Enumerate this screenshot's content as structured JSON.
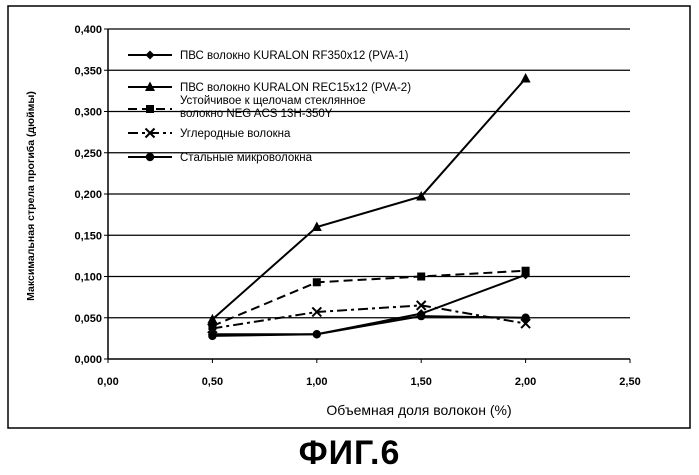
{
  "figure_label": "ФИГ.6",
  "chart_data": {
    "type": "line",
    "title": "",
    "xlabel": "Объемная доля волокон (%)",
    "ylabel": "Максимальная стрела прогиба (дюймы)",
    "xlim": [
      0,
      2.5
    ],
    "ylim": [
      0,
      0.4
    ],
    "x_ticks": [
      "0,00",
      "0,50",
      "1,00",
      "1,50",
      "2,00",
      "2,50"
    ],
    "y_ticks": [
      "0,000",
      "0,050",
      "0,100",
      "0,150",
      "0,200",
      "0,250",
      "0,300",
      "0,350",
      "0,400"
    ],
    "grid": "horizontal",
    "legend_position": "top-left",
    "series": [
      {
        "name": "ПВС волокно KURALON RF350x12 (PVA-1)",
        "line": "solid",
        "marker": "diamond",
        "x": [
          0.5,
          1.0,
          1.5,
          2.0
        ],
        "y": [
          0.03,
          0.03,
          0.055,
          0.102
        ]
      },
      {
        "name": "ПВС волокно KURALON REC15x12 (PVA-2)",
        "line": "solid",
        "marker": "triangle",
        "x": [
          0.5,
          1.0,
          1.5,
          2.0
        ],
        "y": [
          0.048,
          0.16,
          0.197,
          0.34
        ]
      },
      {
        "name": "Устойчивое к щелочам  стеклянное волокно NEG ACS 13H-350Y",
        "line": "dashed",
        "marker": "square",
        "x": [
          0.5,
          1.0,
          1.5,
          2.0
        ],
        "y": [
          0.04,
          0.093,
          0.1,
          0.107
        ]
      },
      {
        "name": "Углеродные волокна",
        "line": "dashdot",
        "marker": "x",
        "x": [
          0.5,
          1.0,
          1.5,
          2.0
        ],
        "y": [
          0.037,
          0.057,
          0.065,
          0.043
        ]
      },
      {
        "name": "Стальные микроволокна",
        "line": "solid",
        "marker": "circle",
        "x": [
          0.5,
          1.0,
          1.5,
          2.0
        ],
        "y": [
          0.028,
          0.03,
          0.052,
          0.05
        ]
      }
    ]
  }
}
